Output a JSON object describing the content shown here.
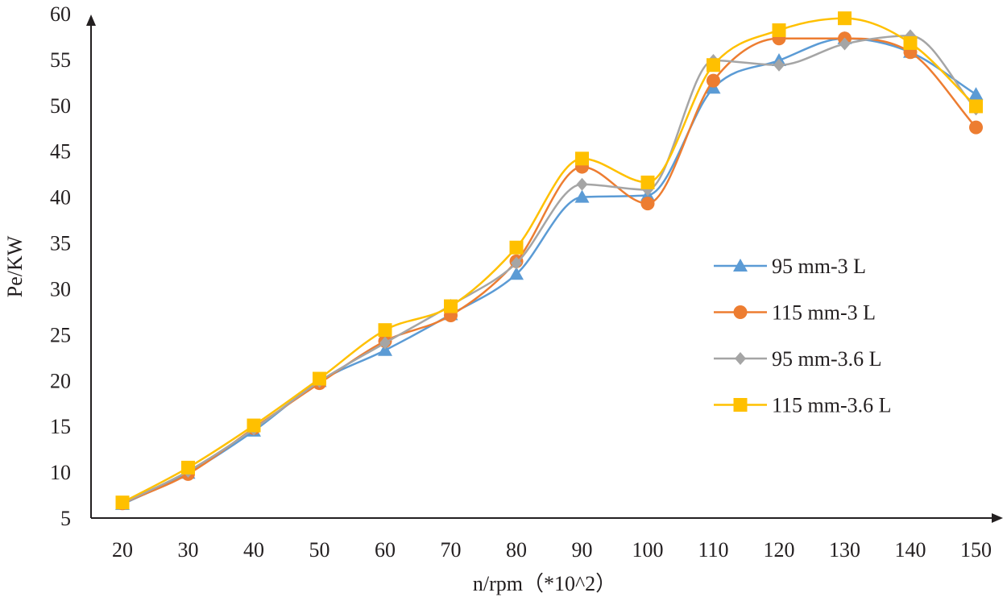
{
  "chart_data": {
    "type": "line",
    "title": "",
    "xlabel": "n/rpm（*10^2）",
    "ylabel": "Pe/KW",
    "categories": [
      "20",
      "30",
      "40",
      "50",
      "60",
      "70",
      "80",
      "90",
      "100",
      "110",
      "120",
      "130",
      "140",
      "150"
    ],
    "ylim": [
      5,
      60
    ],
    "yticks": [
      "5",
      "10",
      "15",
      "20",
      "25",
      "30",
      "35",
      "40",
      "45",
      "50",
      "55",
      "60"
    ],
    "grid": false,
    "legend_position": "right",
    "series": [
      {
        "name": "95 mm-3 L",
        "color": "#5b9bd5",
        "marker": "triangle",
        "values": [
          6.5,
          9.9,
          14.5,
          19.9,
          23.3,
          27.2,
          31.6,
          40.0,
          40.2,
          51.9,
          54.9,
          57.3,
          55.8,
          51.2
        ]
      },
      {
        "name": "115 mm-3 L",
        "color": "#ed7d31",
        "marker": "circle",
        "values": [
          6.6,
          9.8,
          14.8,
          19.7,
          24.3,
          27.1,
          33.0,
          43.3,
          39.3,
          52.7,
          57.3,
          57.3,
          55.8,
          47.6
        ]
      },
      {
        "name": "95 mm-3.6 L",
        "color": "#a5a5a5",
        "marker": "diamond",
        "values": [
          6.6,
          10.1,
          14.7,
          19.9,
          24.1,
          28.2,
          32.8,
          41.4,
          40.8,
          54.9,
          54.4,
          56.7,
          57.6,
          49.6
        ]
      },
      {
        "name": "115 mm-3.6 L",
        "color": "#ffc000",
        "marker": "square",
        "values": [
          6.7,
          10.5,
          15.1,
          20.2,
          25.5,
          28.1,
          34.5,
          44.2,
          41.6,
          54.4,
          58.2,
          59.5,
          56.8,
          49.9
        ]
      }
    ]
  }
}
